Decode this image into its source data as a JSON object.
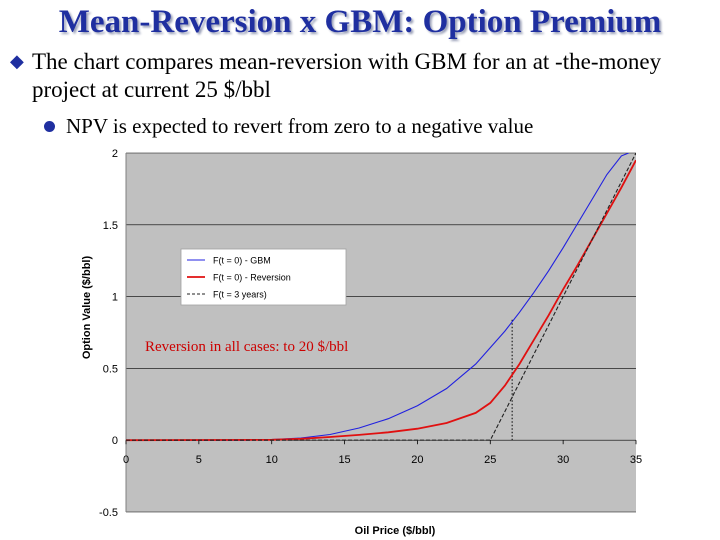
{
  "slide": {
    "title": "Mean-Reversion x GBM: Option Premium",
    "bullet_1": "The chart compares mean-reversion with GBM for an at -the-money project at current 25 $/bbl",
    "bullet_2": "NPV is expected to revert from zero to a negative value",
    "colors": {
      "title": "#1f2fa0",
      "bullet_marker": "#1f2fa0"
    },
    "icons": {
      "bullet_1": "diamond-bullet-icon",
      "bullet_2": "round-bullet-icon"
    }
  },
  "chart_data": {
    "type": "line",
    "xlabel": "Oil Price ($/bbl)",
    "ylabel": "Option Value ($/bbl)",
    "xlim": [
      0,
      35
    ],
    "ylim": [
      -0.5,
      2
    ],
    "x_ticks": [
      0,
      5,
      10,
      15,
      20,
      25,
      30,
      35
    ],
    "x_tick_labels": [
      "0",
      "5",
      "10",
      "15",
      "20",
      "25",
      "30",
      "35"
    ],
    "y_ticks": [
      -0.5,
      0,
      0.5,
      1,
      1.5,
      2
    ],
    "y_tick_labels": [
      "-0.5",
      "0",
      "0.5",
      "1",
      "1.5",
      "2"
    ],
    "grid": "horizontal",
    "plot_background": "#c0c0c0",
    "legend_position": "upper-left",
    "annotation": "Reversion in all cases: to 20 $/bbl",
    "annotation_color": "#cc0000",
    "series": [
      {
        "name": "F(t = 0) - GBM",
        "color": "#2020e0",
        "style": "solid",
        "x": [
          0,
          8,
          10,
          12,
          14,
          16,
          18,
          20,
          22,
          24,
          26,
          27,
          28,
          29,
          30,
          31,
          32,
          33,
          34,
          34.5
        ],
        "y": [
          0,
          0,
          0.004,
          0.015,
          0.04,
          0.085,
          0.15,
          0.24,
          0.36,
          0.53,
          0.76,
          0.89,
          1.03,
          1.18,
          1.34,
          1.51,
          1.68,
          1.85,
          1.98,
          2.0
        ]
      },
      {
        "name": "F(t = 0) - Reversion",
        "color": "#e01010",
        "style": "solid",
        "x": [
          0,
          10,
          12,
          14,
          16,
          18,
          20,
          22,
          24,
          25,
          26,
          27,
          28,
          29,
          30,
          31,
          32,
          33,
          34,
          35
        ],
        "y": [
          0,
          0.003,
          0.01,
          0.022,
          0.037,
          0.055,
          0.08,
          0.12,
          0.19,
          0.26,
          0.38,
          0.53,
          0.7,
          0.87,
          1.05,
          1.22,
          1.4,
          1.58,
          1.76,
          1.95
        ]
      },
      {
        "name": "F(t = 3 years)",
        "color": "#202020",
        "style": "dashed",
        "x": [
          0,
          24.6,
          25,
          26,
          27,
          28,
          29,
          30,
          31,
          32,
          33,
          34,
          35
        ],
        "y": [
          0,
          0,
          0.0,
          0.2,
          0.4,
          0.6,
          0.8,
          1.0,
          1.2,
          1.4,
          1.6,
          1.8,
          2.0
        ]
      }
    ],
    "reference_line": {
      "x": 26.5,
      "y_from": 0,
      "y_to": 0.85,
      "color": "#000000",
      "style": "dotted"
    }
  }
}
